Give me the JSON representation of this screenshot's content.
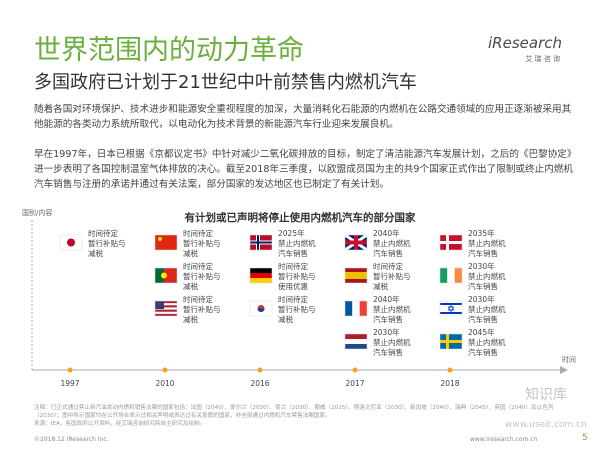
{
  "header": {
    "title": "世界范围内的动力革命",
    "subtitle": "多国政府已计划于21世纪中叶前禁售内燃机汽车",
    "logo": "iResearch",
    "logo_sub": "艾 瑞 咨 询"
  },
  "intro": [
    "随着各国对环境保护、技术进步和能源安全重视程度的加深，大量消耗化石能源的内燃机在公路交通领域的应用正逐渐被采用其他能源的各类动力系统所取代，以电动化为技术背景的新能源汽车行业迎来发展良机。",
    "早在1997年，日本已根据《京都议定书》中针对减少二氧化碳排放的目标，制定了清洁能源汽车发展计划，之后的《巴黎协定》进一步表明了各国控制温室气体排放的决心。截至2018年三季度，以欧盟成员国为主的共9个国家正式作出了限制或终止内燃机汽车销售与注册的承诺并通过有关法案，部分国家的发达地区也已制定了有关计划。"
  ],
  "figure": {
    "title": "有计划或已声明将停止使用内燃机汽车的部分国家",
    "axis_y": "国别/内容",
    "axis_x": "时间",
    "years": [
      "1997",
      "2010",
      "2016",
      "2017",
      "2018"
    ],
    "columns": [
      [
        [
          "时间待定",
          "暂行补贴与",
          "减税"
        ]
      ],
      [
        [
          "时间待定",
          "暂行补贴与",
          "减税"
        ],
        [
          "时间待定",
          "暂行补贴与",
          "减税"
        ],
        [
          "时间待定",
          "暂行补贴与",
          "减税"
        ]
      ],
      [
        [
          "2025年",
          "禁止内燃机",
          "汽车销售"
        ],
        [
          "时间待定",
          "暂行补贴与",
          "使用优惠"
        ],
        [
          "时间待定",
          "暂行补贴与",
          "减税"
        ]
      ],
      [
        [
          "2040年",
          "禁止内燃机",
          "汽车销售"
        ],
        [
          "时间待定",
          "暂行补贴与",
          "减税"
        ],
        [
          "2040年",
          "禁止内燃机",
          "汽车销售"
        ],
        [
          "2030年",
          "禁止内燃机",
          "汽车销售"
        ]
      ],
      [
        [
          "2035年",
          "禁止内燃机",
          "汽车销售"
        ],
        [
          "2030年",
          "禁止内燃机",
          "汽车销售"
        ],
        [
          "2030年",
          "禁止内燃机",
          "汽车销售"
        ],
        [
          "2045年",
          "禁止内燃机",
          "汽车销售"
        ]
      ]
    ]
  },
  "notes": {
    "note": "注释：已正式通过禁止新汽油发动内燃机销售法案的国家包括：法国（2040）、爱尔兰（2030）、荷兰（2030）、挪威（2025）、斯洛文尼亚（2030）、新加坡（2040）、瑞典（2045）、英国（2040）及以色列（2030）；图中所示国家均在公开场合表示过相关声明或表达过有关意愿的国家，非全部通过内燃机汽车禁售法案国家。",
    "source": "来源：IEA，各国政府公开资料，经艾瑞咨询研究院自主研究及绘制。"
  },
  "footer": {
    "copyright": "©2018.12 iResearch Inc.",
    "url": "www.iresearch.com.cn",
    "page": "5"
  },
  "watermark": [
    "知识库",
    "www.useit.com.cn"
  ]
}
